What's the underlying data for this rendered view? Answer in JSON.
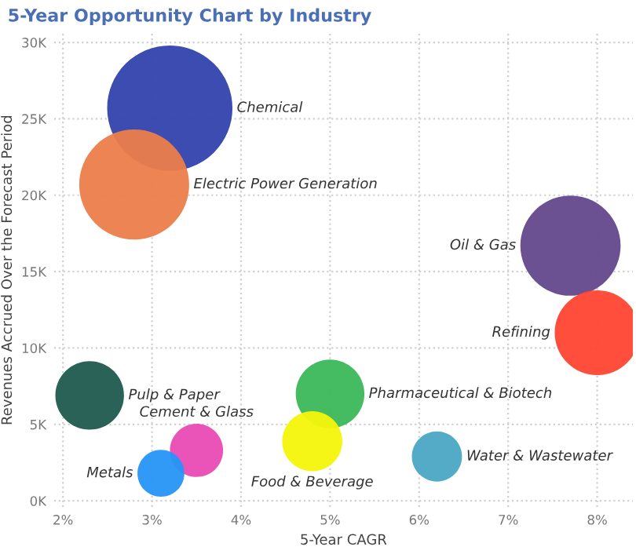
{
  "chart_data": {
    "type": "bubble",
    "title": "5-Year Opportunity Chart by Industry",
    "xlabel": "5-Year CAGR",
    "ylabel": "Revenues Accrued Over the Forecast Period",
    "series": [
      {
        "name": "Chemical",
        "color": "#3342ad",
        "x": [
          3.2
        ],
        "values": [
          25700
        ],
        "sizes": [
          1
        ]
      },
      {
        "name": "Electric Power Generation",
        "color": "#ec7d4b",
        "x": [
          2.8
        ],
        "values": [
          20700
        ],
        "sizes": [
          0.77
        ]
      },
      {
        "name": "Oil & Gas",
        "color": "#64488c",
        "x": [
          7.7
        ],
        "values": [
          16700
        ],
        "sizes": [
          0.64
        ]
      },
      {
        "name": "Refining",
        "color": "#ff4432",
        "x": [
          8.0
        ],
        "values": [
          11000
        ],
        "sizes": [
          0.46
        ]
      },
      {
        "name": "Pulp & Paper",
        "color": "#1f5a4e",
        "x": [
          2.3
        ],
        "values": [
          6900
        ],
        "sizes": [
          0.3
        ]
      },
      {
        "name": "Pharmaceutical & Biotech",
        "color": "#3bb85a",
        "x": [
          5.0
        ],
        "values": [
          7000
        ],
        "sizes": [
          0.3
        ]
      },
      {
        "name": "Food & Beverage",
        "color": "#f5f50a",
        "x": [
          4.8
        ],
        "values": [
          3900
        ],
        "sizes": [
          0.23
        ]
      },
      {
        "name": "Cement & Glass",
        "color": "#e94bb5",
        "x": [
          3.5
        ],
        "values": [
          3300
        ],
        "sizes": [
          0.18
        ]
      },
      {
        "name": "Metals",
        "color": "#2595f5",
        "x": [
          3.1
        ],
        "values": [
          1800
        ],
        "sizes": [
          0.14
        ]
      },
      {
        "name": "Water & Wastewater",
        "color": "#4aa6c4",
        "x": [
          6.2
        ],
        "values": [
          2900
        ],
        "sizes": [
          0.16
        ]
      }
    ],
    "xlim": [
      1.9,
      8.4
    ],
    "xticks": [
      {
        "value": 2,
        "label": "2%"
      },
      {
        "value": 3,
        "label": "3%"
      },
      {
        "value": 4,
        "label": "4%"
      },
      {
        "value": 5,
        "label": "5%"
      },
      {
        "value": 6,
        "label": "6%"
      },
      {
        "value": 7,
        "label": "7%"
      },
      {
        "value": 8,
        "label": "8%"
      }
    ],
    "ylim": [
      -400,
      30600
    ],
    "yticks": [
      {
        "value": 0,
        "label": "0K"
      },
      {
        "value": 5000,
        "label": "5K"
      },
      {
        "value": 10000,
        "label": "10K"
      },
      {
        "value": 15000,
        "label": "15K"
      },
      {
        "value": 20000,
        "label": "20K"
      },
      {
        "value": 25000,
        "label": "25K"
      },
      {
        "value": 30000,
        "label": "30K"
      }
    ],
    "grid": true
  }
}
